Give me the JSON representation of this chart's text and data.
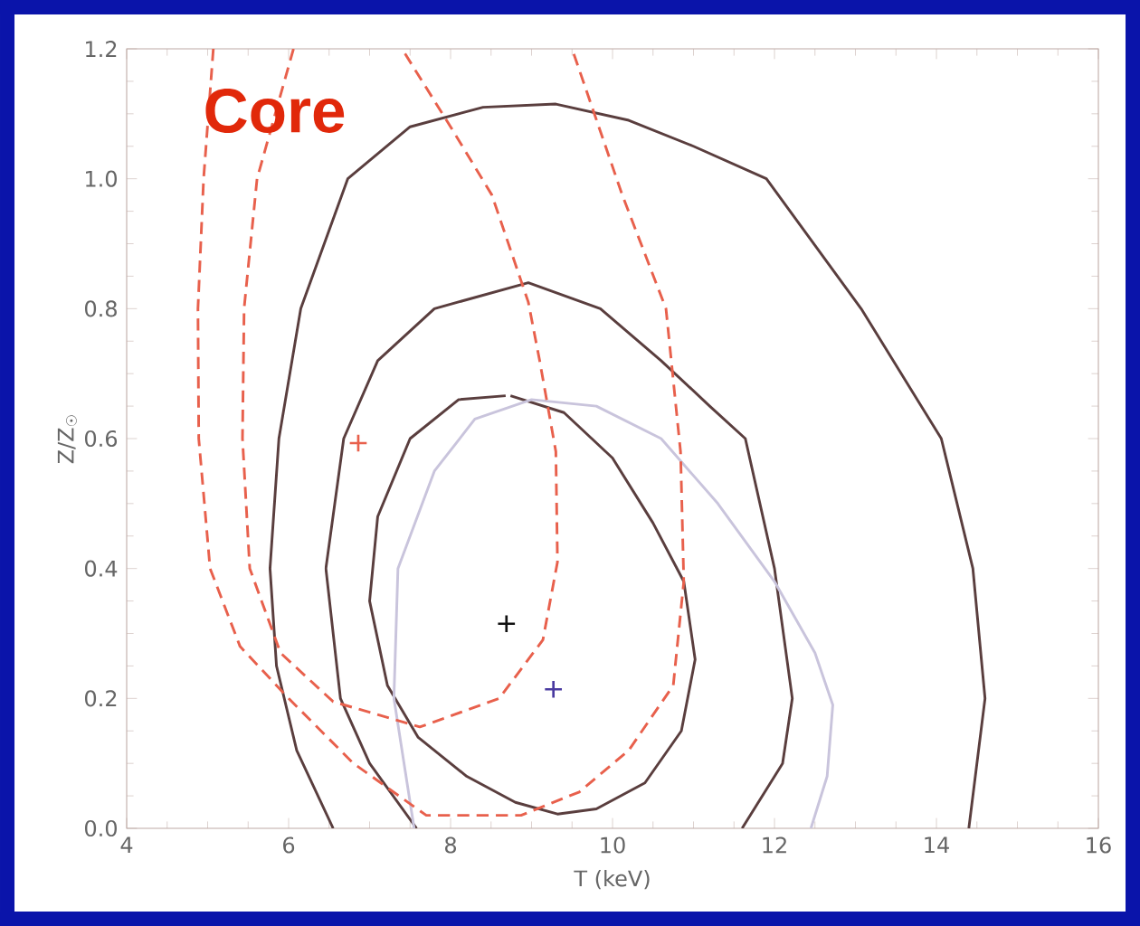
{
  "chart_data": {
    "type": "line",
    "xlabel": "T (keV)",
    "ylabel": "Z/Z$_{☉}$",
    "annotations": [
      "Core"
    ],
    "xlim": [
      4,
      16
    ],
    "ylim": [
      0,
      1.2
    ],
    "xticks": [
      4,
      6,
      8,
      10,
      12,
      14,
      16
    ],
    "yticks": [
      {
        "value": 0,
        "label": "0.0"
      },
      0.2,
      0.4,
      0.6,
      0.8,
      {
        "value": 1,
        "label": "1.0"
      },
      1.2
    ],
    "grid": false,
    "series": [
      {
        "color": "#5a3e3e",
        "line_style": "solid",
        "x": [
          6.55,
          6.1,
          5.85,
          5.77,
          5.88,
          6.15,
          6.73,
          7.5,
          8.4,
          9.3,
          10.2,
          11.0,
          11.9,
          13.07,
          14.06,
          14.45,
          14.6,
          14.4
        ],
        "values": [
          0,
          0.12,
          0.25,
          0.4,
          0.6,
          0.8,
          1.0,
          1.08,
          1.11,
          1.115,
          1.09,
          1.05,
          1.0,
          0.8,
          0.6,
          0.4,
          0.2,
          0
        ]
      },
      {
        "color": "#5a3e3e",
        "line_style": "solid",
        "x": [
          7.58,
          7.0,
          6.64,
          6.46,
          6.68,
          7.1,
          7.8,
          8.96,
          9.85,
          10.6,
          11.2,
          11.64,
          12.0,
          12.22,
          12.1,
          11.6
        ],
        "values": [
          0,
          0.1,
          0.2,
          0.4,
          0.6,
          0.72,
          0.8,
          0.84,
          0.8,
          0.72,
          0.65,
          0.6,
          0.4,
          0.2,
          0.1,
          0
        ]
      },
      {
        "color": "#5a3e3e",
        "line_style": "solid",
        "x": [
          8.74,
          9.4,
          10.0,
          10.5,
          10.88,
          11.02,
          10.85,
          10.4,
          9.8,
          9.32,
          8.8,
          8.2,
          7.6,
          7.22,
          7.0,
          7.1,
          7.5,
          8.1,
          8.68
        ],
        "values": [
          0.666,
          0.64,
          0.57,
          0.47,
          0.38,
          0.26,
          0.15,
          0.07,
          0.03,
          0.022,
          0.04,
          0.08,
          0.14,
          0.22,
          0.35,
          0.48,
          0.6,
          0.66,
          0.666
        ]
      },
      {
        "color": "#c9c4dc",
        "line_style": "solid",
        "x": [
          7.55,
          7.3,
          7.35,
          7.8,
          8.3,
          9.0,
          9.8,
          10.6,
          11.3,
          12.0,
          12.5,
          12.72,
          12.65,
          12.45
        ],
        "values": [
          0,
          0.2,
          0.4,
          0.55,
          0.63,
          0.66,
          0.65,
          0.6,
          0.5,
          0.38,
          0.27,
          0.19,
          0.08,
          0
        ]
      },
      {
        "color": "#e8604c",
        "line_style": "dashed",
        "x": [
          5.07,
          4.95,
          4.88,
          4.89,
          5.03,
          5.4,
          6.0,
          6.8,
          7.7,
          8.87,
          9.59,
          10.2,
          10.75,
          10.88,
          10.84,
          10.66,
          10.12,
          9.5
        ],
        "values": [
          1.2,
          1.0,
          0.8,
          0.6,
          0.4,
          0.28,
          0.2,
          0.1,
          0.02,
          0.02,
          0.056,
          0.12,
          0.22,
          0.38,
          0.58,
          0.8,
          0.975,
          1.2
        ]
      },
      {
        "color": "#e8604c",
        "line_style": "dashed",
        "x": [
          6.06,
          5.61,
          5.45,
          5.43,
          5.52,
          5.9,
          6.55,
          7.62,
          8.6,
          9.14,
          9.32,
          9.3,
          9.1,
          8.96,
          8.51,
          8.0,
          7.4
        ],
        "values": [
          1.2,
          1.0,
          0.8,
          0.6,
          0.4,
          0.27,
          0.195,
          0.156,
          0.2,
          0.29,
          0.41,
          0.58,
          0.72,
          0.81,
          0.975,
          1.08,
          1.2
        ]
      },
      {
        "type": "scatter",
        "color": "#111111",
        "marker": "cross",
        "x": [
          8.69
        ],
        "values": [
          0.315
        ]
      },
      {
        "type": "scatter",
        "color": "#4a3aa0",
        "marker": "cross",
        "x": [
          9.27
        ],
        "values": [
          0.214
        ]
      },
      {
        "type": "scatter",
        "color": "#e8604c",
        "marker": "cross",
        "x": [
          6.86
        ],
        "values": [
          0.593
        ]
      }
    ]
  }
}
